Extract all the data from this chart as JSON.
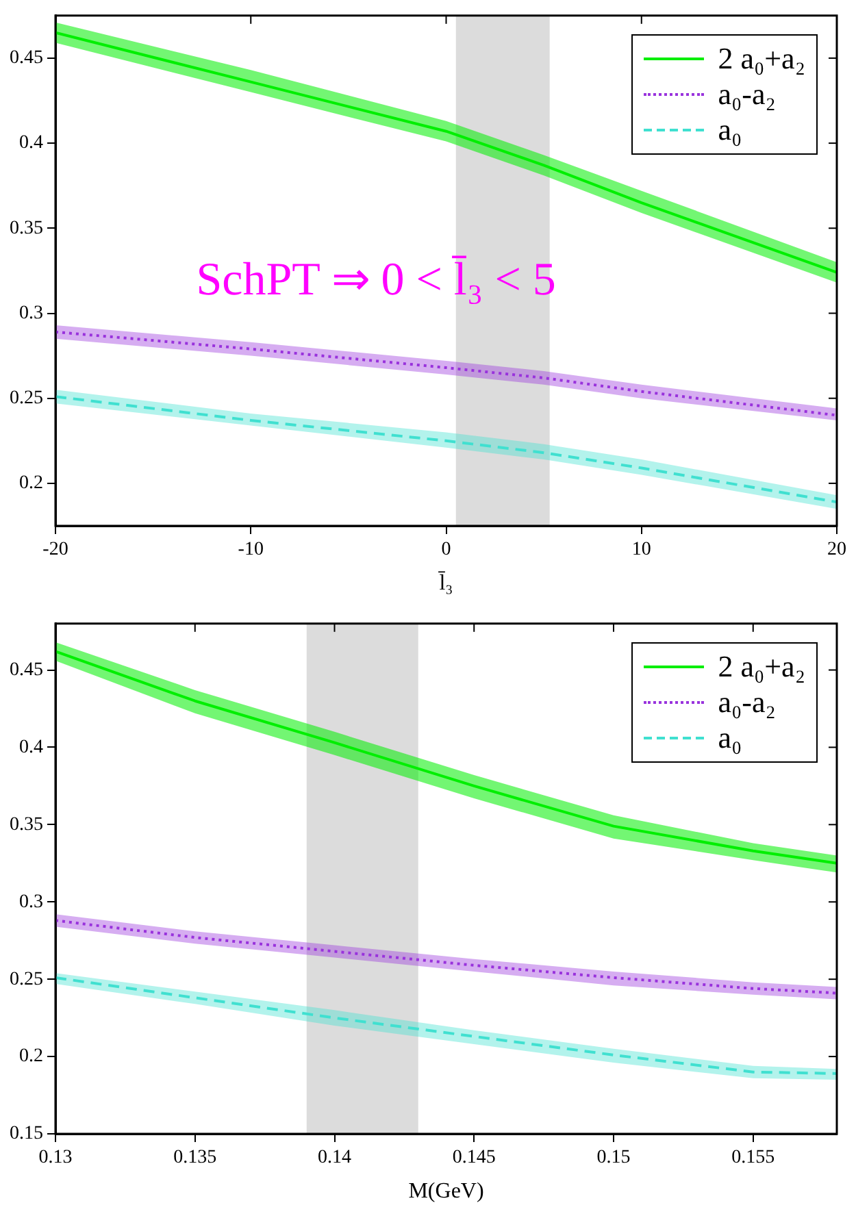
{
  "chart_data": [
    {
      "type": "line",
      "xlabel": "l̄₃",
      "annotations": [
        "SchPT ⇒ 0 < l̄₃ < 5"
      ],
      "x": [
        -20,
        -10,
        0,
        5,
        10,
        20
      ],
      "xlim": [
        -20,
        20
      ],
      "xticks": [
        -20,
        -10,
        0,
        10,
        20
      ],
      "ylim": [
        0.175,
        0.475
      ],
      "yticks": [
        0.2,
        0.25,
        0.3,
        0.35,
        0.4,
        0.45
      ],
      "grid": false,
      "legend": "top right",
      "bands": [
        {
          "axis": "x",
          "from": 0.5,
          "to": 5.3,
          "color": "#dcdcdc"
        }
      ],
      "series": [
        {
          "name": "2 a₀+a₂",
          "color": "#00ee00",
          "line_style": "solid",
          "values": [
            0.465,
            0.436,
            0.407,
            0.387,
            0.365,
            0.324
          ],
          "lower": [
            0.459,
            0.43,
            0.401,
            0.381,
            0.359,
            0.318
          ],
          "upper": [
            0.471,
            0.443,
            0.413,
            0.393,
            0.372,
            0.33
          ]
        },
        {
          "name": "a₀-a₂",
          "color": "#9933dd",
          "line_style": "dotted",
          "values": [
            0.289,
            0.279,
            0.268,
            0.262,
            0.254,
            0.24
          ],
          "lower": [
            0.285,
            0.275,
            0.264,
            0.258,
            0.25,
            0.237
          ],
          "upper": [
            0.293,
            0.283,
            0.272,
            0.266,
            0.258,
            0.244
          ]
        },
        {
          "name": "a₀",
          "color": "#40e0d0",
          "line_style": "dashed",
          "values": [
            0.251,
            0.237,
            0.225,
            0.218,
            0.209,
            0.189
          ],
          "lower": [
            0.247,
            0.234,
            0.221,
            0.214,
            0.205,
            0.185
          ],
          "upper": [
            0.255,
            0.241,
            0.23,
            0.223,
            0.214,
            0.193
          ]
        }
      ]
    },
    {
      "type": "line",
      "xlabel": "M(GeV)",
      "x": [
        0.13,
        0.135,
        0.14,
        0.145,
        0.15,
        0.155,
        0.158
      ],
      "xlim": [
        0.13,
        0.158
      ],
      "xticks": [
        0.13,
        0.135,
        0.14,
        0.145,
        0.15,
        0.155
      ],
      "ylim": [
        0.15,
        0.48
      ],
      "yticks": [
        0.15,
        0.2,
        0.25,
        0.3,
        0.35,
        0.4,
        0.45
      ],
      "grid": false,
      "legend": "top right",
      "bands": [
        {
          "axis": "x",
          "from": 0.139,
          "to": 0.143,
          "color": "#dcdcdc"
        }
      ],
      "series": [
        {
          "name": "2 a₀+a₂",
          "color": "#00ee00",
          "line_style": "solid",
          "values": [
            0.462,
            0.43,
            0.403,
            0.375,
            0.349,
            0.333,
            0.325
          ],
          "lower": [
            0.456,
            0.422,
            0.395,
            0.367,
            0.341,
            0.327,
            0.319
          ],
          "upper": [
            0.468,
            0.437,
            0.41,
            0.382,
            0.356,
            0.338,
            0.33
          ]
        },
        {
          "name": "a₀-a₂",
          "color": "#9933dd",
          "line_style": "dotted",
          "values": [
            0.288,
            0.277,
            0.268,
            0.259,
            0.251,
            0.244,
            0.241
          ],
          "lower": [
            0.284,
            0.273,
            0.264,
            0.255,
            0.246,
            0.24,
            0.237
          ],
          "upper": [
            0.292,
            0.281,
            0.272,
            0.263,
            0.255,
            0.248,
            0.245
          ]
        },
        {
          "name": "a₀",
          "color": "#40e0d0",
          "line_style": "dashed",
          "values": [
            0.251,
            0.238,
            0.225,
            0.213,
            0.201,
            0.19,
            0.189
          ],
          "lower": [
            0.247,
            0.234,
            0.22,
            0.208,
            0.196,
            0.186,
            0.185
          ],
          "upper": [
            0.254,
            0.242,
            0.23,
            0.217,
            0.205,
            0.194,
            0.192
          ]
        }
      ]
    }
  ]
}
